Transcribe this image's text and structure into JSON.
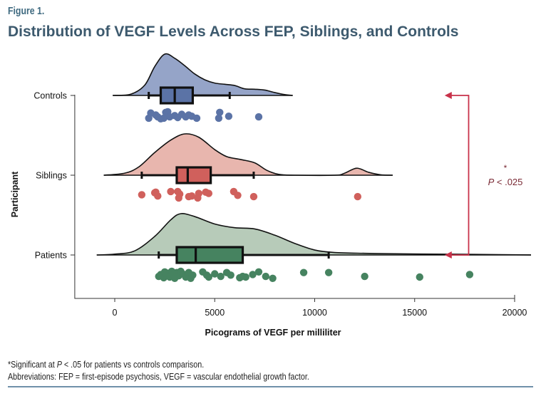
{
  "figure": {
    "label": "Figure 1.",
    "title": "Distribution of VEGF Levels Across FEP, Siblings, and Controls"
  },
  "footnotes": {
    "line1_prefix": "*Significant at ",
    "line1_p": "P",
    "line1_suffix": " < .05 for patients vs controls comparison.",
    "line2": "Abbreviations: FEP = first-episode psychosis, VEGF = vascular endothelial growth factor."
  },
  "chart_data": {
    "type": "raincloud",
    "title": "Distribution of VEGF Levels Across FEP, Siblings, and Controls",
    "xlabel": "Picograms of VEGF per milliliter",
    "ylabel": "Participant",
    "xlim": [
      -2000,
      20000
    ],
    "xticks": [
      0,
      5000,
      10000,
      15000,
      20000
    ],
    "xtick_labels": [
      "0",
      "5000",
      "10000",
      "15000",
      "20000"
    ],
    "categories": [
      "Controls",
      "Siblings",
      "Patients"
    ],
    "grid": false,
    "series": [
      {
        "name": "Controls",
        "color": "#5b73a6",
        "fill": "#95a4c8",
        "box": {
          "whisker_low": 1700,
          "q1": 2300,
          "median": 3000,
          "q3": 3900,
          "whisker_high": 5750
        },
        "density_range": [
          -100,
          8900
        ],
        "density": [
          [
            -100,
            0
          ],
          [
            800,
            0.03
          ],
          [
            1500,
            0.25
          ],
          [
            2000,
            0.7
          ],
          [
            2500,
            1.0
          ],
          [
            3000,
            0.9
          ],
          [
            3500,
            0.72
          ],
          [
            4000,
            0.52
          ],
          [
            4500,
            0.38
          ],
          [
            5000,
            0.3
          ],
          [
            5500,
            0.27
          ],
          [
            6000,
            0.24
          ],
          [
            6500,
            0.16
          ],
          [
            7000,
            0.15
          ],
          [
            7500,
            0.13
          ],
          [
            8000,
            0.07
          ],
          [
            8500,
            0.02
          ],
          [
            8900,
            0
          ]
        ],
        "points": [
          {
            "x": 1700,
            "j": 0.55
          },
          {
            "x": 1800,
            "j": 0.15
          },
          {
            "x": 2050,
            "j": 0.3
          },
          {
            "x": 2150,
            "j": 0.45
          },
          {
            "x": 2300,
            "j": 0.6
          },
          {
            "x": 2450,
            "j": 0.55
          },
          {
            "x": 2550,
            "j": 0.1
          },
          {
            "x": 2650,
            "j": 0.05
          },
          {
            "x": 2750,
            "j": 0.45
          },
          {
            "x": 3000,
            "j": 0.35
          },
          {
            "x": 3150,
            "j": 0.5
          },
          {
            "x": 3350,
            "j": 0.25
          },
          {
            "x": 3550,
            "j": 0.45
          },
          {
            "x": 3700,
            "j": 0.3
          },
          {
            "x": 3850,
            "j": 0.4
          },
          {
            "x": 4100,
            "j": 0.55
          },
          {
            "x": 5250,
            "j": 0.1
          },
          {
            "x": 5200,
            "j": 0.55
          },
          {
            "x": 5700,
            "j": 0.4
          },
          {
            "x": 7200,
            "j": 0.45
          }
        ]
      },
      {
        "name": "Siblings",
        "color": "#d0605c",
        "fill": "#e8b6ae",
        "box": {
          "whisker_low": 1350,
          "q1": 3100,
          "median": 3650,
          "q3": 4800,
          "whisker_high": 6950
        },
        "density_range": [
          -550,
          13900
        ],
        "density": [
          [
            -550,
            0
          ],
          [
            500,
            0.05
          ],
          [
            1200,
            0.2
          ],
          [
            2000,
            0.55
          ],
          [
            2800,
            0.85
          ],
          [
            3500,
            1.0
          ],
          [
            4200,
            0.92
          ],
          [
            5000,
            0.62
          ],
          [
            5600,
            0.45
          ],
          [
            6300,
            0.38
          ],
          [
            7000,
            0.3
          ],
          [
            7600,
            0.12
          ],
          [
            8200,
            0.02
          ],
          [
            9000,
            0
          ],
          [
            11000,
            0
          ],
          [
            11500,
            0.05
          ],
          [
            12100,
            0.17
          ],
          [
            12700,
            0.07
          ],
          [
            13300,
            0.01
          ],
          [
            13900,
            0
          ]
        ],
        "points": [
          {
            "x": 1350,
            "j": 0.3
          },
          {
            "x": 2050,
            "j": 0.1
          },
          {
            "x": 2150,
            "j": 0.4
          },
          {
            "x": 2000,
            "j": 0.15
          },
          {
            "x": 2800,
            "j": 0.05
          },
          {
            "x": 3150,
            "j": 0.05
          },
          {
            "x": 3250,
            "j": 0.25
          },
          {
            "x": 3200,
            "j": 0.55
          },
          {
            "x": 3700,
            "j": 0.45
          },
          {
            "x": 3850,
            "j": 0.4
          },
          {
            "x": 4200,
            "j": 0.2
          },
          {
            "x": 4150,
            "j": 0.55
          },
          {
            "x": 4550,
            "j": 0.1
          },
          {
            "x": 4700,
            "j": 0.2
          },
          {
            "x": 5950,
            "j": 0.05
          },
          {
            "x": 6150,
            "j": 0.35
          },
          {
            "x": 6950,
            "j": 0.45
          },
          {
            "x": 12150,
            "j": 0.45
          }
        ]
      },
      {
        "name": "Patients",
        "color": "#468360",
        "fill": "#b7cbb9",
        "box": {
          "whisker_low": 2200,
          "q1": 3100,
          "median": 4050,
          "q3": 6400,
          "whisker_high": 10700
        },
        "density_range": [
          -900,
          21000
        ],
        "density": [
          [
            -900,
            0
          ],
          [
            0,
            0.02
          ],
          [
            1000,
            0.1
          ],
          [
            2000,
            0.45
          ],
          [
            2800,
            0.85
          ],
          [
            3300,
            1.0
          ],
          [
            4000,
            0.93
          ],
          [
            5000,
            0.75
          ],
          [
            6000,
            0.66
          ],
          [
            7000,
            0.63
          ],
          [
            8000,
            0.48
          ],
          [
            9000,
            0.28
          ],
          [
            10000,
            0.12
          ],
          [
            11000,
            0.06
          ],
          [
            12500,
            0.04
          ],
          [
            14000,
            0.03
          ],
          [
            16000,
            0.02
          ],
          [
            18000,
            0.015
          ],
          [
            21000,
            0
          ]
        ],
        "points": [
          {
            "x": 2200,
            "j": 0.45
          },
          {
            "x": 2300,
            "j": 0.3
          },
          {
            "x": 2450,
            "j": 0.55
          },
          {
            "x": 2500,
            "j": 0.1
          },
          {
            "x": 2600,
            "j": 0.35
          },
          {
            "x": 2700,
            "j": 0.2
          },
          {
            "x": 2750,
            "j": 0.5
          },
          {
            "x": 2850,
            "j": 0.05
          },
          {
            "x": 2950,
            "j": 0.3
          },
          {
            "x": 3000,
            "j": 0.6
          },
          {
            "x": 3100,
            "j": 0.15
          },
          {
            "x": 3200,
            "j": 0.4
          },
          {
            "x": 3300,
            "j": 0.05
          },
          {
            "x": 3400,
            "j": 0.25
          },
          {
            "x": 3550,
            "j": 0.5
          },
          {
            "x": 3700,
            "j": 0.15
          },
          {
            "x": 3800,
            "j": 0.6
          },
          {
            "x": 3900,
            "j": 0.35
          },
          {
            "x": 4400,
            "j": 0.1
          },
          {
            "x": 4600,
            "j": 0.35
          },
          {
            "x": 4700,
            "j": 0.5
          },
          {
            "x": 5000,
            "j": 0.25
          },
          {
            "x": 5300,
            "j": 0.45
          },
          {
            "x": 5600,
            "j": 0.15
          },
          {
            "x": 5800,
            "j": 0.35
          },
          {
            "x": 6250,
            "j": 0.55
          },
          {
            "x": 6400,
            "j": 0.45
          },
          {
            "x": 6550,
            "j": 0.5
          },
          {
            "x": 6900,
            "j": 0.3
          },
          {
            "x": 7200,
            "j": 0.1
          },
          {
            "x": 7550,
            "j": 0.45
          },
          {
            "x": 7900,
            "j": 0.6
          },
          {
            "x": 9450,
            "j": 0.15
          },
          {
            "x": 10700,
            "j": 0.15
          },
          {
            "x": 12500,
            "j": 0.45
          },
          {
            "x": 15250,
            "j": 0.5
          },
          {
            "x": 17750,
            "j": 0.3
          }
        ]
      }
    ],
    "annotation": {
      "from": "Patients",
      "to": "Controls",
      "bracket_x": 17700,
      "arrow_tip_x": 16500,
      "color": "#c8324a",
      "star": "*",
      "text_p": "P",
      "text_rest": " < .025"
    }
  }
}
